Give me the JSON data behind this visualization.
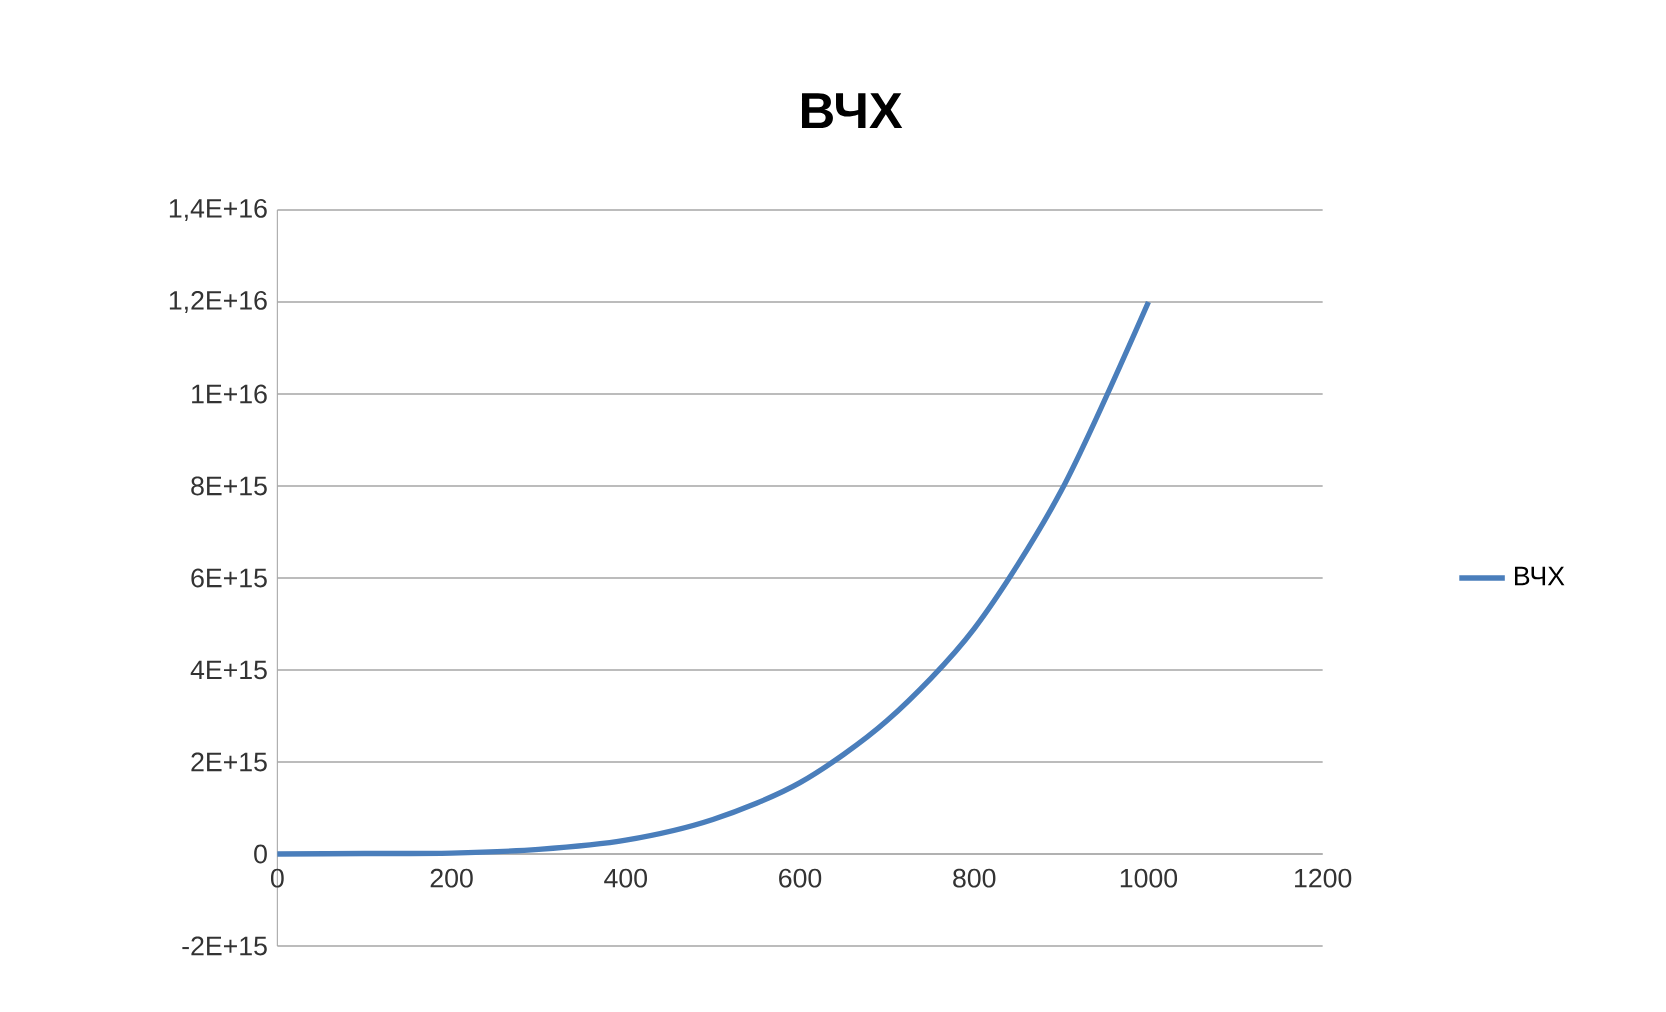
{
  "chart_data": {
    "type": "line",
    "title": "ВЧХ",
    "x": [
      0,
      100,
      200,
      300,
      400,
      500,
      600,
      700,
      800,
      900,
      1000
    ],
    "series": [
      {
        "name": "ВЧХ",
        "color": "#4a7ebb",
        "values": [
          0,
          10000000000000,
          20000000000000,
          100000000000000,
          300000000000000,
          750000000000000,
          1550000000000000,
          2900000000000000,
          4900000000000000,
          7900000000000000,
          12000000000000000
        ]
      }
    ],
    "xlim": [
      0,
      1200
    ],
    "xticks": [
      0,
      200,
      400,
      600,
      800,
      1000,
      1200
    ],
    "ylim": [
      -2000000000000000,
      14000000000000000
    ],
    "yticks": [
      {
        "value": -2000000000000000,
        "label": "-2E+15"
      },
      0,
      {
        "value": 2000000000000000,
        "label": "2E+15"
      },
      {
        "value": 4000000000000000,
        "label": "4E+15"
      },
      {
        "value": 6000000000000000,
        "label": "6E+15"
      },
      {
        "value": 8000000000000000,
        "label": "8E+15"
      },
      {
        "value": 10000000000000000,
        "label": "1E+16"
      },
      {
        "value": 12000000000000000,
        "label": "1,2E+16"
      },
      {
        "value": 14000000000000000,
        "label": "1,4E+16"
      }
    ],
    "grid": "y",
    "legend": "right",
    "marker": "none",
    "line_style": "solid"
  }
}
